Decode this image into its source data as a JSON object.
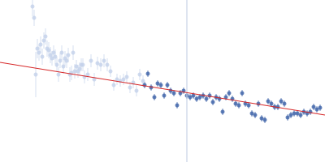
{
  "chart_data": {
    "type": "scatter",
    "xlim": [
      0,
      400
    ],
    "ylim": [
      0,
      200
    ],
    "xticks": [
      0,
      400
    ],
    "yticks": [
      0,
      200
    ],
    "grid": false,
    "tick_labels": false,
    "series": [
      {
        "type": "scatter",
        "color": "#c3d1ea",
        "marker": "circle",
        "x": [
          40,
          42,
          44,
          46,
          48,
          50,
          52,
          54,
          56,
          58,
          60,
          62,
          64,
          66,
          68,
          70,
          72,
          74,
          76,
          78,
          80,
          82,
          84,
          86,
          88,
          90,
          92,
          94,
          96,
          98,
          100,
          102,
          104,
          108,
          112,
          116,
          120,
          124,
          128,
          132,
          136,
          140,
          144,
          148,
          152,
          156,
          160,
          164,
          168,
          172,
          176
        ],
        "values": [
          192,
          178,
          108,
          140,
          135,
          145,
          130,
          150,
          155,
          140,
          138,
          132,
          128,
          135,
          130,
          120,
          108,
          125,
          135,
          118,
          128,
          125,
          132,
          108,
          110,
          135,
          112,
          118,
          112,
          115,
          120,
          120,
          105,
          108,
          125,
          102,
          122,
          120,
          125,
          120,
          112,
          95,
          102,
          100,
          102,
          105,
          92,
          98,
          88,
          108,
          100
        ],
        "errors": [
          12,
          10,
          28,
          12,
          10,
          10,
          10,
          10,
          10,
          10,
          10,
          10,
          9,
          9,
          9,
          9,
          9,
          9,
          9,
          9,
          9,
          9,
          9,
          9,
          9,
          9,
          9,
          8,
          8,
          8,
          8,
          8,
          8,
          8,
          8,
          8,
          8,
          8,
          8,
          8,
          7,
          7,
          7,
          7,
          7,
          7,
          7,
          7,
          7,
          7,
          7
        ]
      },
      {
        "type": "scatter",
        "color": "#3a5fa6",
        "marker": "circle",
        "x": [
          178,
          182,
          186,
          190,
          194,
          198,
          202,
          206,
          210,
          214,
          218,
          222,
          226,
          230,
          234,
          238,
          242,
          246,
          250,
          254,
          258,
          262,
          266,
          270,
          274,
          278,
          282,
          286,
          290,
          294,
          298,
          302,
          306,
          310,
          314,
          318,
          322,
          326,
          330,
          334,
          338,
          342,
          346,
          350,
          354,
          358,
          362,
          366,
          370,
          374,
          378,
          382,
          386,
          390,
          394
        ],
        "values": [
          95,
          109,
          92,
          80,
          97,
          95,
          82,
          95,
          88,
          85,
          70,
          85,
          88,
          82,
          80,
          82,
          78,
          80,
          82,
          78,
          82,
          74,
          80,
          78,
          62,
          80,
          85,
          78,
          72,
          70,
          85,
          72,
          70,
          60,
          58,
          72,
          54,
          52,
          75,
          72,
          68,
          68,
          75,
          72,
          55,
          58,
          60,
          60,
          58,
          62,
          60,
          62,
          68,
          65,
          67
        ],
        "errors": [
          4,
          4,
          4,
          4,
          4,
          4,
          4,
          4,
          4,
          4,
          4,
          4,
          4,
          4,
          4,
          4,
          4,
          4,
          4,
          4,
          4,
          4,
          4,
          4,
          4,
          4,
          4,
          4,
          4,
          4,
          4,
          4,
          4,
          4,
          4,
          4,
          4,
          4,
          4,
          4,
          4,
          4,
          4,
          4,
          4,
          4,
          4,
          4,
          4,
          4,
          4,
          4,
          4,
          4,
          4
        ]
      },
      {
        "type": "line",
        "color": "#c8d3e6",
        "line_style": "solid",
        "x": [
          230,
          230
        ],
        "values": [
          0,
          200
        ]
      },
      {
        "type": "line",
        "color": "#d62728",
        "line_style": "solid",
        "x": [
          0,
          400
        ],
        "values": [
          123,
          58
        ]
      }
    ]
  }
}
